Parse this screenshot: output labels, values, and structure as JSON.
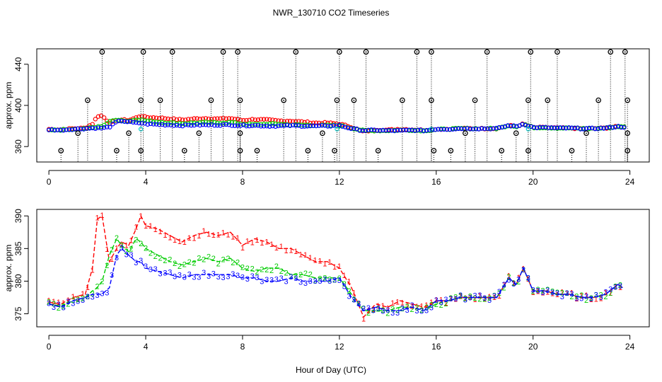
{
  "figure": {
    "title": "NWR_130710  CO2 Timeseries",
    "xlabel": "Hour of Day (UTC)"
  },
  "colors": {
    "series1": "#ff0000",
    "series2": "#00cc00",
    "series3": "#0000ff",
    "flagged": "#00cccc",
    "outlier": "#000000"
  },
  "chart_data": [
    {
      "type": "scatter",
      "panel": "top",
      "ylabel": "approx. ppm",
      "xlim": [
        -0.5,
        24.8
      ],
      "ylim": [
        345,
        455
      ],
      "xticks": [
        0,
        4,
        8,
        12,
        16,
        20,
        24
      ],
      "yticks": [
        360,
        400,
        440
      ],
      "outliers_high_x": [
        2.2,
        3.9,
        5.1,
        7.2,
        7.8,
        10.2,
        12.0,
        13.1,
        15.2,
        15.8,
        18.1,
        19.9,
        21.0,
        23.2,
        23.8
      ],
      "outliers_high_y": 452,
      "outliers_mid_x": [
        1.6,
        3.8,
        4.6,
        6.7,
        7.9,
        9.7,
        11.9,
        12.6,
        14.6,
        15.8,
        17.6,
        19.8,
        20.6,
        22.7,
        23.9
      ],
      "outliers_mid_y": 405,
      "outliers_low_x": [
        0.5,
        2.8,
        3.8,
        5.6,
        7.9,
        8.6,
        10.7,
        11.8,
        13.6,
        15.9,
        16.6,
        18.7,
        19.8,
        21.6,
        23.9
      ],
      "outliers_low_y": 356,
      "outliers_near_x": [
        1.2,
        3.3,
        6.2,
        7.9,
        11.3,
        17.2,
        19.3,
        22.2,
        23.9
      ],
      "outliers_near_y": 373
    },
    {
      "type": "line",
      "panel": "bottom",
      "ylabel": "approx. ppm",
      "xlim": [
        -0.5,
        24.8
      ],
      "ylim": [
        373,
        391
      ],
      "xticks": [
        0,
        4,
        8,
        12,
        16,
        20,
        24
      ],
      "yticks": [
        375,
        380,
        385,
        390
      ],
      "series": [
        {
          "name": "1",
          "color": "#ff0000",
          "x": [
            0,
            0.5,
            1,
            1.5,
            1.8,
            2.0,
            2.2,
            2.5,
            2.8,
            3.0,
            3.3,
            3.6,
            3.8,
            4.0,
            4.5,
            5.0,
            5.5,
            6.0,
            6.5,
            7.0,
            7.5,
            8.0,
            8.5,
            9.0,
            9.5,
            10.0,
            10.5,
            11.0,
            11.5,
            12.0,
            12.5,
            13.0,
            13.5,
            14.0,
            14.5,
            15.0,
            15.5,
            16.0,
            16.5,
            17.0,
            17.5,
            18.0,
            18.5,
            19.0,
            19.3,
            19.6,
            20.0,
            20.5,
            21.0,
            21.5,
            22.0,
            22.5,
            23.0,
            23.5,
            23.7
          ],
          "y": [
            376.8,
            376.5,
            377.5,
            378,
            382,
            389.5,
            390,
            383,
            385,
            386,
            385.5,
            388,
            390,
            388.5,
            388,
            387,
            386,
            387,
            387.5,
            387,
            387.5,
            385.5,
            386.5,
            386,
            385,
            385,
            384,
            383,
            383,
            382,
            379,
            374.5,
            376.5,
            376,
            377,
            376.5,
            376,
            377,
            377,
            377.5,
            377.5,
            377.5,
            377.5,
            380.5,
            379.5,
            382,
            378.5,
            378.5,
            378,
            378,
            377.5,
            377.5,
            378,
            379.5,
            379
          ]
        },
        {
          "name": "2",
          "color": "#00cc00",
          "x": [
            0,
            0.5,
            1,
            1.5,
            1.8,
            2.0,
            2.2,
            2.5,
            2.8,
            3.0,
            3.3,
            3.6,
            3.8,
            4.0,
            4.5,
            5.0,
            5.5,
            6.0,
            6.5,
            7.0,
            7.5,
            8.0,
            8.5,
            9.0,
            9.5,
            10.0,
            10.5,
            11.0,
            11.5,
            12.0,
            12.5,
            13.0,
            13.5,
            14.0,
            14.5,
            15.0,
            15.5,
            16.0,
            16.5,
            17.0,
            17.5,
            18.0,
            18.5,
            19.0,
            19.3,
            19.6,
            20.0,
            20.5,
            21.0,
            21.5,
            22.0,
            22.5,
            23.0,
            23.5,
            23.7
          ],
          "y": [
            376.5,
            376.2,
            377,
            377.5,
            378.5,
            379,
            380,
            384,
            386.5,
            385.5,
            384.5,
            386.5,
            386,
            385,
            384,
            383,
            382.5,
            383,
            383.5,
            383,
            383.5,
            382,
            381.5,
            382,
            382,
            381,
            381,
            380.5,
            380.5,
            380.5,
            378,
            375.5,
            375.5,
            375.5,
            376,
            376,
            375.5,
            376.5,
            377,
            377.5,
            377.5,
            377.5,
            377.5,
            380.5,
            379.5,
            382,
            378.5,
            378.5,
            378,
            378,
            377.5,
            377.5,
            378,
            379.5,
            379
          ]
        },
        {
          "name": "3",
          "color": "#0000ff",
          "x": [
            0,
            0.5,
            1,
            1.5,
            1.8,
            2.0,
            2.2,
            2.5,
            2.8,
            3.0,
            3.3,
            3.6,
            3.8,
            4.0,
            4.5,
            5.0,
            5.5,
            6.0,
            6.5,
            7.0,
            7.5,
            8.0,
            8.5,
            9.0,
            9.5,
            10.0,
            10.5,
            11.0,
            11.5,
            12.0,
            12.5,
            13.0,
            13.5,
            14.0,
            14.5,
            15.0,
            15.5,
            16.0,
            16.5,
            17.0,
            17.5,
            18.0,
            18.5,
            19.0,
            19.3,
            19.6,
            20.0,
            20.5,
            21.0,
            21.5,
            22.0,
            22.5,
            23.0,
            23.5,
            23.7
          ],
          "y": [
            376.5,
            376,
            377,
            377.5,
            378,
            378,
            378,
            379,
            384,
            385,
            384,
            383,
            383,
            382,
            381.5,
            381,
            380.5,
            381,
            381,
            381,
            381,
            380.5,
            380.5,
            380,
            380,
            380.5,
            380,
            380,
            380,
            380.5,
            377.5,
            375.5,
            376,
            375.5,
            375.5,
            376,
            375.5,
            377,
            377,
            377.5,
            377.5,
            377.5,
            377.5,
            380.5,
            379.5,
            382,
            378.5,
            378.5,
            378,
            378,
            377.5,
            377.5,
            378,
            379.5,
            379
          ]
        }
      ]
    }
  ]
}
